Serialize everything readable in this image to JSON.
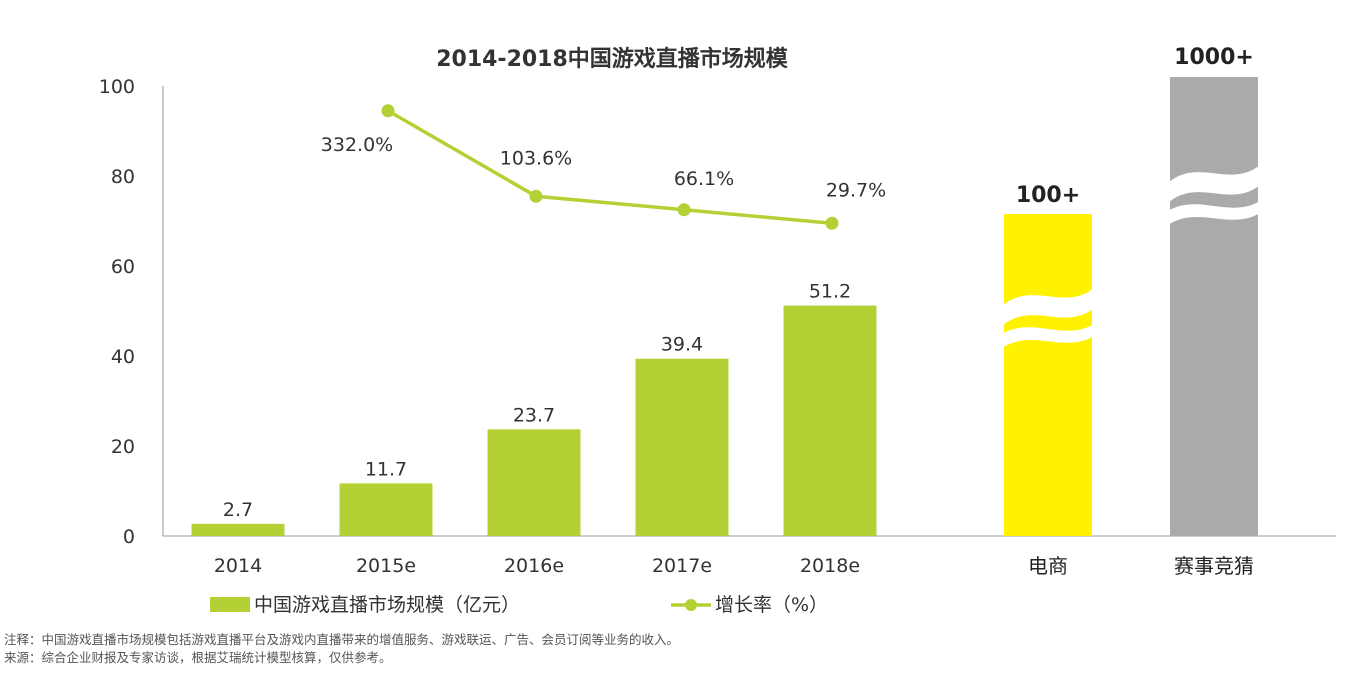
{
  "chart_data": {
    "type": "bar",
    "title": "2014-2018中国游戏直播市场规模",
    "categories": [
      "2014",
      "2015e",
      "2016e",
      "2017e",
      "2018e"
    ],
    "series": [
      {
        "name": "中国游戏直播市场规模（亿元）",
        "type": "bar",
        "values": [
          2.7,
          11.7,
          23.7,
          39.4,
          51.2
        ],
        "value_labels": [
          "2.7",
          "11.7",
          "23.7",
          "39.4",
          "51.2"
        ],
        "color": "#b3d134"
      },
      {
        "name": "增长率（%）",
        "type": "line",
        "values": [
          null,
          332.0,
          103.6,
          66.1,
          29.7
        ],
        "value_labels": [
          "",
          "332.0%",
          "103.6%",
          "66.1%",
          "29.7%"
        ],
        "plot_y": [
          null,
          94.5,
          75.5,
          72.5,
          69.5
        ],
        "color": "#b3d134"
      }
    ],
    "ylim": [
      0,
      100
    ],
    "yticks": [
      "0",
      "20",
      "40",
      "60",
      "80",
      "100"
    ],
    "xlabel": "",
    "ylabel": "",
    "comparison_bars": [
      {
        "label": "电商",
        "value_label": "100+",
        "color": "#fff200",
        "break_mark": true
      },
      {
        "label": "赛事竞猜",
        "value_label": "1000+",
        "color": "#aaaaaa",
        "break_mark": true
      }
    ],
    "legend_position": "bottom",
    "grid": false
  },
  "footnotes": {
    "note": "注释：中国游戏直播市场规模包括游戏直播平台及游戏内直播带来的增值服务、游戏联运、广告、会员订阅等业务的收入。",
    "source": "来源：综合企业财报及专家访谈，根据艾瑞统计模型核算，仅供参考。"
  }
}
